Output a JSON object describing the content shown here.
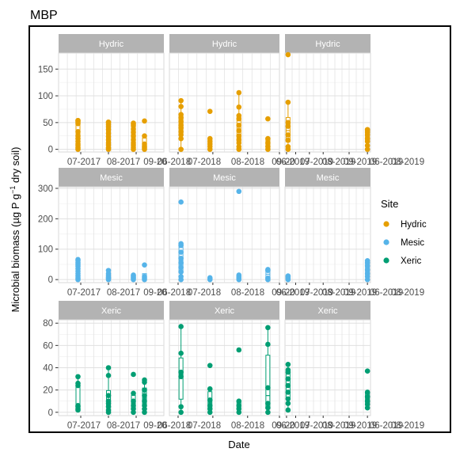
{
  "chart_data": {
    "type": "scatter",
    "title": "MBP",
    "xlabel": "Date",
    "ylabel": "Microbial biomass (µg P g⁻¹ dry soil)",
    "grid": true,
    "legend": {
      "title": "Site",
      "position": "right",
      "entries": [
        "Hydric",
        "Mesic",
        "Xeric"
      ]
    },
    "colors": {
      "Hydric": "#E69F00",
      "Mesic": "#56B4E9",
      "Xeric": "#009E73",
      "strip_bg": "#b3b3b3",
      "panel_bg": "#ffffff",
      "grid": "#e0e0e0",
      "border": "#000000"
    },
    "column_tick_labels": [
      [
        "07-2017",
        "08-2017",
        "09-20"
      ],
      [
        "06-2018",
        "07-2018",
        "08-2018",
        "09-20"
      ],
      [
        "06-2019",
        "07-2019",
        "08-2019",
        "09-2019",
        "06-2019",
        "08-2019"
      ]
    ],
    "rows": [
      {
        "site": "Hydric",
        "ylim": [
          -5,
          180
        ],
        "yticks": [
          0,
          50,
          100,
          150
        ],
        "panels": [
          {
            "strip": "Hydric",
            "groups": [
              {
                "x": 0.9,
                "values": [
                  0,
                  3,
                  7,
                  10,
                  15,
                  20,
                  25,
                  33,
                  48,
                  51,
                  53,
                  54
                ]
              },
              {
                "x": 2.0,
                "values": [
                  0,
                  3,
                  8,
                  12,
                  18,
                  24,
                  30,
                  37,
                  42,
                  46,
                  50,
                  51
                ]
              },
              {
                "x": 2.9,
                "values": [
                  0,
                  4,
                  8,
                  12,
                  18,
                  25,
                  32,
                  38,
                  44,
                  47,
                  49
                ]
              },
              {
                "x": 3.3,
                "values": [
                  0,
                  3,
                  6,
                  10,
                  25,
                  53
                ]
              }
            ]
          },
          {
            "strip": "Hydric",
            "groups": [
              {
                "x": 0.6,
                "values": [
                  0,
                  20,
                  27,
                  33,
                  40,
                  45,
                  52,
                  59,
                  65,
                  80,
                  91
                ]
              },
              {
                "x": 1.6,
                "values": [
                  0,
                  5,
                  10,
                  15,
                  20,
                  71
                ]
              },
              {
                "x": 2.6,
                "values": [
                  0,
                  5,
                  12,
                  18,
                  25,
                  35,
                  45,
                  57,
                  63,
                  79,
                  106
                ]
              },
              {
                "x": 3.6,
                "values": [
                  0,
                  5,
                  12,
                  20,
                  57
                ]
              }
            ]
          },
          {
            "strip": "Hydric",
            "groups": [
              {
                "x": 0.4,
                "values": [
                  0,
                  5,
                  17,
                  27,
                  43,
                  50,
                  88,
                  177
                ]
              },
              {
                "x": 5.6,
                "values": [
                  0,
                  7,
                  15,
                  20,
                  27,
                  32,
                  35,
                  37
                ]
              }
            ]
          }
        ]
      },
      {
        "site": "Mesic",
        "ylim": [
          -10,
          305
        ],
        "yticks": [
          0,
          100,
          200,
          300
        ],
        "panels": [
          {
            "strip": "Mesic",
            "groups": [
              {
                "x": 0.9,
                "values": [
                  0,
                  5,
                  12,
                  20,
                  28,
                  36,
                  44,
                  50,
                  55,
                  62,
                  66
                ]
              },
              {
                "x": 2.0,
                "values": [
                  0,
                  4,
                  8,
                  14,
                  20,
                  30
                ]
              },
              {
                "x": 2.9,
                "values": [
                  0,
                  4,
                  8,
                  12,
                  15
                ]
              },
              {
                "x": 3.3,
                "values": [
                  0,
                  5,
                  10,
                  48
                ]
              }
            ]
          },
          {
            "strip": "Mesic",
            "groups": [
              {
                "x": 0.6,
                "values": [
                  0,
                  10,
                  25,
                  40,
                  55,
                  70,
                  90,
                  112,
                  118,
                  255
                ]
              },
              {
                "x": 1.6,
                "values": [
                  0,
                  3,
                  6
                ]
              },
              {
                "x": 2.6,
                "values": [
                  0,
                  5,
                  10,
                  15,
                  290
                ]
              },
              {
                "x": 3.6,
                "values": [
                  0,
                  5,
                  30,
                  33
                ]
              }
            ]
          },
          {
            "strip": "Mesic",
            "groups": [
              {
                "x": 0.4,
                "values": [
                  0,
                  5,
                  10,
                  12
                ]
              },
              {
                "x": 5.6,
                "values": [
                  0,
                  10,
                  20,
                  32,
                  45,
                  55,
                  62
                ]
              }
            ]
          }
        ]
      },
      {
        "site": "Xeric",
        "ylim": [
          -3,
          83
        ],
        "yticks": [
          0,
          20,
          40,
          60,
          80
        ],
        "panels": [
          {
            "strip": "Xeric",
            "groups": [
              {
                "x": 0.9,
                "values": [
                  2,
                  3,
                  5,
                  6,
                  24,
                  26,
                  32
                ]
              },
              {
                "x": 2.0,
                "values": [
                  0,
                  2,
                  5,
                  8,
                  10,
                  15,
                  33,
                  40
                ]
              },
              {
                "x": 2.9,
                "values": [
                  0,
                  3,
                  6,
                  10,
                  17,
                  34
                ]
              },
              {
                "x": 3.3,
                "values": [
                  0,
                  3,
                  6,
                  10,
                  15,
                  20,
                  27,
                  29
                ]
              }
            ]
          },
          {
            "strip": "Xeric",
            "groups": [
              {
                "x": 0.6,
                "values": [
                  0,
                  5,
                  32,
                  36,
                  53,
                  77
                ]
              },
              {
                "x": 1.6,
                "values": [
                  0,
                  3,
                  6,
                  11,
                  21,
                  42
                ]
              },
              {
                "x": 2.6,
                "values": [
                  0,
                  3,
                  6,
                  10,
                  56
                ]
              },
              {
                "x": 3.6,
                "values": [
                  0,
                  4,
                  8,
                  22,
                  61,
                  76
                ]
              }
            ]
          },
          {
            "strip": "Xeric",
            "groups": [
              {
                "x": 0.4,
                "values": [
                  2,
                  8,
                  12,
                  18,
                  24,
                  30,
                  36,
                  38,
                  43
                ]
              },
              {
                "x": 5.6,
                "values": [
                  4,
                  7,
                  10,
                  14,
                  18,
                  37
                ]
              }
            ]
          }
        ]
      }
    ]
  }
}
